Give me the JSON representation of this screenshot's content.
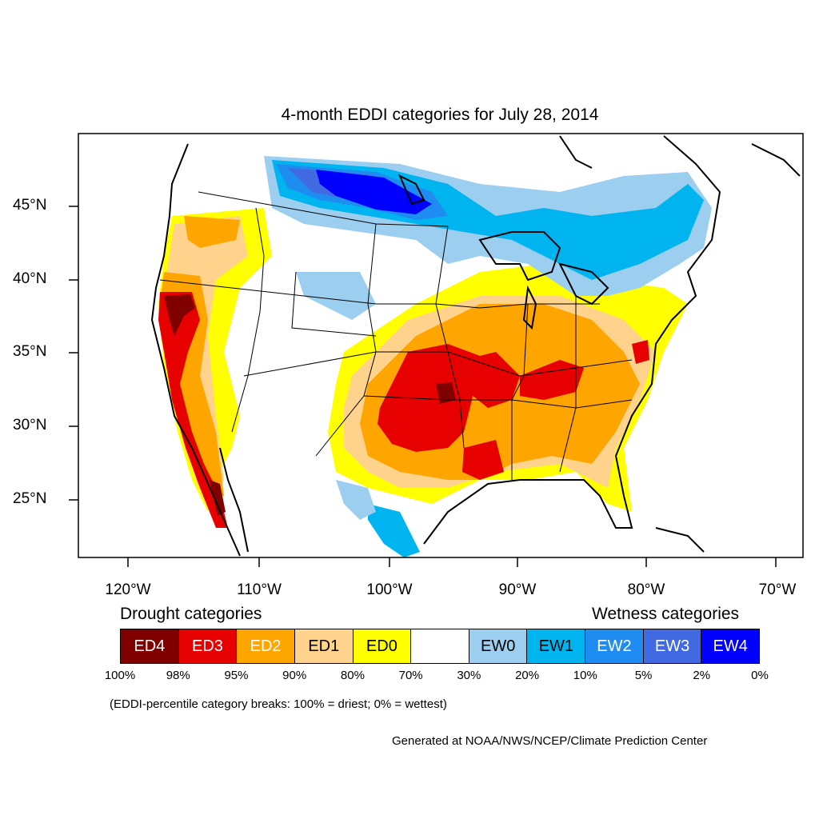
{
  "title": "4-month EDDI categories for July 28, 2014",
  "axes": {
    "y_ticks": [
      "45°N",
      "40°N",
      "35°N",
      "30°N",
      "25°N"
    ],
    "x_ticks": [
      "120°W",
      "110°W",
      "100°W",
      "90°W",
      "80°W",
      "70°W"
    ]
  },
  "legend": {
    "drought_heading": "Drought categories",
    "wetness_heading": "Wetness categories",
    "categories": [
      {
        "label": "ED4",
        "color": "#800000",
        "text_color": "#ffffff"
      },
      {
        "label": "ED3",
        "color": "#e60000",
        "text_color": "#ffffff"
      },
      {
        "label": "ED2",
        "color": "#ffa500",
        "text_color": "#ffffff"
      },
      {
        "label": "ED1",
        "color": "#ffd38c",
        "text_color": "#000000"
      },
      {
        "label": "ED0",
        "color": "#ffff00",
        "text_color": "#000000"
      },
      {
        "label": "",
        "color": "#ffffff",
        "text_color": "#000000"
      },
      {
        "label": "EW0",
        "color": "#9ccef0",
        "text_color": "#000000"
      },
      {
        "label": "EW1",
        "color": "#00b4f0",
        "text_color": "#000000"
      },
      {
        "label": "EW2",
        "color": "#1e8cf0",
        "text_color": "#ffffff"
      },
      {
        "label": "EW3",
        "color": "#4169e1",
        "text_color": "#ffffff"
      },
      {
        "label": "EW4",
        "color": "#0000ff",
        "text_color": "#ffffff"
      }
    ],
    "percentiles": [
      "100%",
      "98%",
      "95%",
      "90%",
      "80%",
      "70%",
      "30%",
      "20%",
      "10%",
      "5%",
      "2%",
      "0%"
    ]
  },
  "note": "(EDDI-percentile category breaks: 100% = driest; 0% = wettest)",
  "credit": "Generated at NOAA/NWS/NCEP/Climate Prediction Center",
  "map_regions": [
    {
      "name": "west-coast-drought",
      "category": "ED3"
    },
    {
      "name": "southern-plains-drought",
      "category": "ED3"
    },
    {
      "name": "mid-mississippi-drought",
      "category": "ED3"
    },
    {
      "name": "northern-plains-wet",
      "category": "EW4"
    },
    {
      "name": "great-lakes-wet",
      "category": "EW1"
    },
    {
      "name": "northeast-wet",
      "category": "EW1"
    }
  ]
}
